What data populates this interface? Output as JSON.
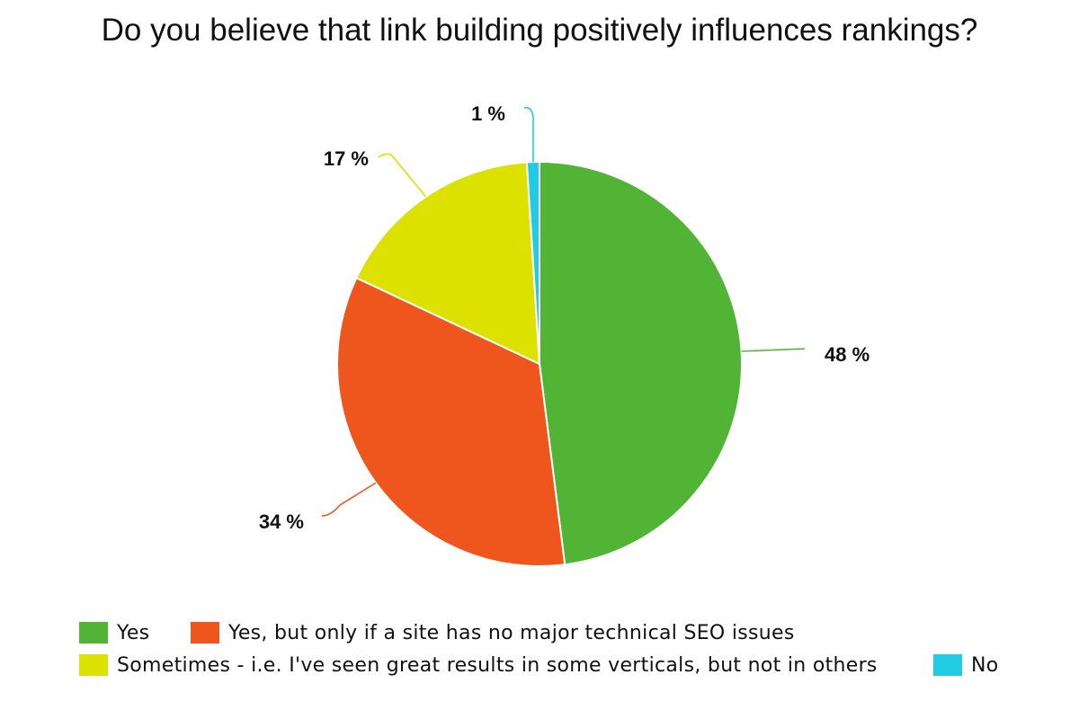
{
  "chart_data": {
    "type": "pie",
    "title": "Do you believe that link building positively influences rankings?",
    "slices": [
      {
        "name": "Yes",
        "value": 48,
        "label": "48 %",
        "color": "#52B435"
      },
      {
        "name": "Yes, but only if a site has no major technical SEO issues",
        "value": 34,
        "label": "34 %",
        "color": "#EE561E"
      },
      {
        "name": "Sometimes - i.e. I've seen great results in some verticals, but not in others",
        "value": 17,
        "label": "17 %",
        "color": "#DCE100"
      },
      {
        "name": "No",
        "value": 1,
        "label": "1 %",
        "color": "#22CBE4"
      }
    ],
    "start_angle_deg": 0,
    "direction": "clockwise",
    "legend_position": "bottom"
  }
}
